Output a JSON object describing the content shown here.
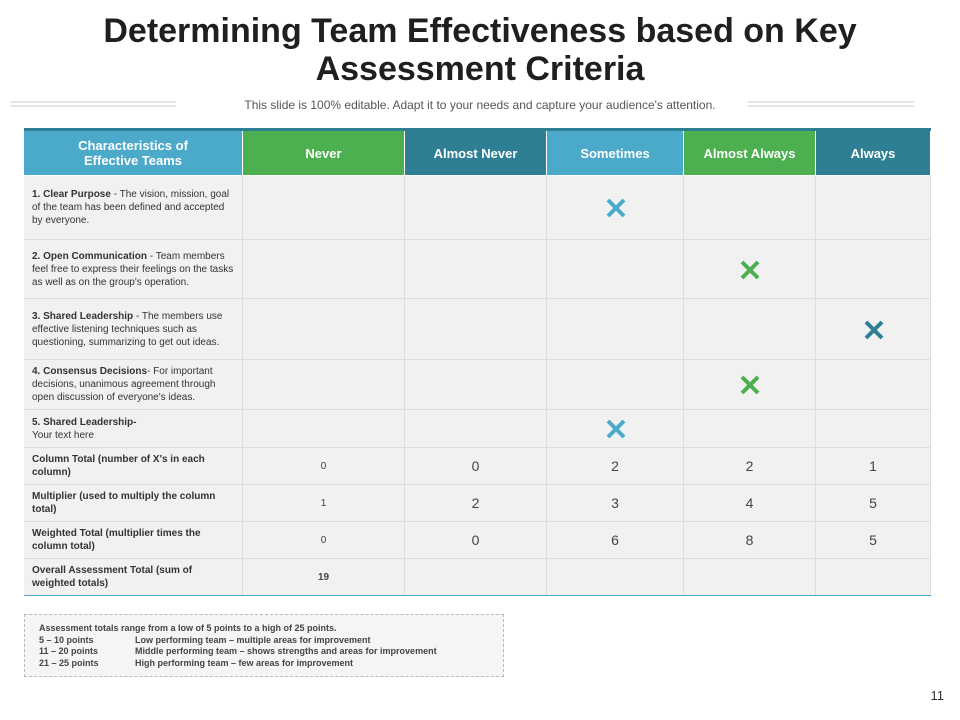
{
  "header": {
    "title": "Determining Team Effectiveness based on Key Assessment Criteria",
    "subtitle": "This slide is 100% editable. Adapt it to your needs and capture your audience's attention."
  },
  "table": {
    "headers": [
      {
        "text": "Characteristics of Effective Teams",
        "color": "#4ba9c9"
      },
      {
        "text": "Never",
        "color": "#4caf50"
      },
      {
        "text": "Almost Never",
        "color": "#2e7f93"
      },
      {
        "text": "Sometimes",
        "color": "#4ba9c9"
      },
      {
        "text": "Almost Always",
        "color": "#4caf50"
      },
      {
        "text": "Always",
        "color": "#2e7f93"
      }
    ],
    "rows": [
      {
        "label": "1. Clear Purpose",
        "text": " - The vision, mission, goal of the team has been defined and accepted by everyone.",
        "checked": "Sometimes"
      },
      {
        "label": "2. Open Communication",
        "text": " - Team members feel free to express their feelings on the tasks as well as on the group's operation.",
        "checked": "Almost Always"
      },
      {
        "label": "3. Shared Leadership",
        "text": " - The members use effective listening techniques such as questioning, summarizing to get out ideas.",
        "checked": "Always"
      },
      {
        "label": "4. Consensus Decisions",
        "text": "- For important decisions, unanimous agreement through open discussion of everyone's ideas.",
        "checked": "Almost Always"
      },
      {
        "label": "5. Shared Leadership-",
        "text": "Your text here",
        "checked": "Sometimes"
      }
    ],
    "totals": [
      {
        "label": "Column Total (number of X's in each column)",
        "values": [
          0,
          0,
          2,
          2,
          1
        ]
      },
      {
        "label": "Multiplier (used to multiply the column total)",
        "values": [
          1,
          2,
          3,
          4,
          5
        ]
      },
      {
        "label": "Weighted Total (multiplier times the column total)",
        "values": [
          0,
          0,
          6,
          8,
          5
        ]
      },
      {
        "label": "Overall Assessment Total (sum of weighted totals)",
        "values": [
          19
        ]
      }
    ]
  },
  "note": {
    "intro": "Assessment totals range from a low of 5 points to a high of 25 points.",
    "ranges": [
      {
        "range": "5 – 10 points",
        "desc": "Low performing team – multiple areas for improvement"
      },
      {
        "range": "11 – 20 points",
        "desc": "Middle performing team – shows strengths and areas for improvement"
      },
      {
        "range": "21 – 25 points",
        "desc": "High performing team – few areas for improvement"
      }
    ]
  },
  "page_number": "11"
}
